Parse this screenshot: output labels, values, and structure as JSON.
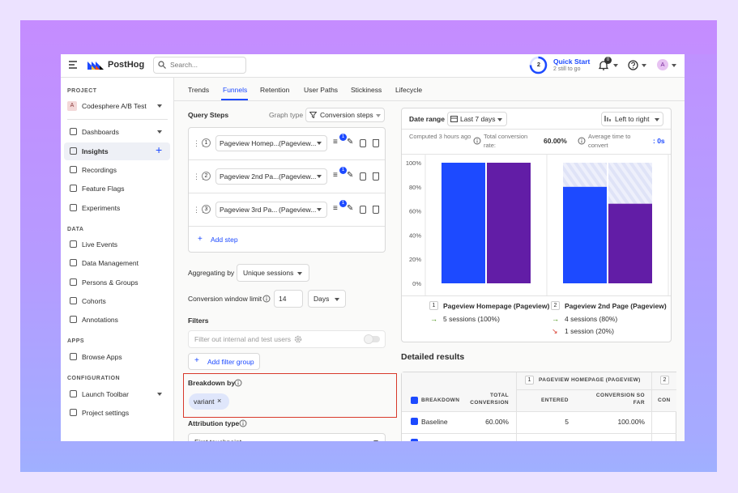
{
  "topbar": {
    "logo": "PostHog",
    "search_placeholder": "Search...",
    "quick_start": {
      "remaining": "2",
      "title": "Quick Start",
      "subtitle": "2 still to go"
    },
    "notification_count": "0",
    "avatar": "A"
  },
  "sidebar": {
    "project_heading": "PROJECT",
    "project_initial": "A",
    "project_name": "Codesphere A/B Test",
    "nav": [
      "Dashboards",
      "Insights",
      "Recordings",
      "Feature Flags",
      "Experiments"
    ],
    "data_heading": "DATA",
    "data_items": [
      "Live Events",
      "Data Management",
      "Persons & Groups",
      "Cohorts",
      "Annotations"
    ],
    "apps_heading": "APPS",
    "apps_items": [
      "Browse Apps"
    ],
    "configuration_heading": "CONFIGURATION",
    "configuration_items": [
      "Launch Toolbar",
      "Project settings"
    ]
  },
  "tabs": [
    "Trends",
    "Funnels",
    "Retention",
    "User Paths",
    "Stickiness",
    "Lifecycle"
  ],
  "query": {
    "heading": "Query Steps",
    "graph_type_label": "Graph type",
    "graph_type": "Conversion steps",
    "steps": [
      {
        "number": "1",
        "event": "Pageview Homep...",
        "math": "(Pageview...",
        "filter_count": "1"
      },
      {
        "number": "2",
        "event": "Pageview 2nd Pa...",
        "math": "(Pageview...",
        "filter_count": "1"
      },
      {
        "number": "3",
        "event": "Pageview 3rd Pa...",
        "math": "(Pageview...",
        "filter_count": "1"
      }
    ],
    "add_step": "Add step",
    "aggregating_label": "Aggregating by",
    "aggregating": "Unique sessions",
    "window_label": "Conversion window limit",
    "window_value": "14",
    "window_unit": "Days",
    "filters_heading": "Filters",
    "filter_internal": "Filter out internal and test users",
    "add_filter_group": "Add filter group",
    "breakdown_heading": "Breakdown by",
    "breakdown_value": "variant",
    "attribution_heading": "Attribution type",
    "attribution": "First touchpoint"
  },
  "insight": {
    "date_range_label": "Date range",
    "date_range": "Last 7 days",
    "layout": "Left to right",
    "computed": "Computed 3 hours ago",
    "total_conversion_label": "Total conversion rate:",
    "total_conversion": "60.00%",
    "avg_time_label": "Average time to convert",
    "avg_time": ": 0s"
  },
  "chart_data": {
    "type": "bar",
    "categories": [
      "Pageview Homepage (Pageview)",
      "Pageview 2nd Page (Pageview)"
    ],
    "step_numbers": [
      "1",
      "2"
    ],
    "series": [
      {
        "color": "#1d4aff",
        "values": [
          100,
          80
        ]
      },
      {
        "color": "#621da6",
        "values": [
          100,
          66
        ]
      }
    ],
    "ylim": [
      0,
      100
    ],
    "yticks": [
      {
        "value": 0,
        "label": "0%"
      },
      {
        "value": 20,
        "label": "20%"
      },
      {
        "value": 40,
        "label": "40%"
      },
      {
        "value": 60,
        "label": "60%"
      },
      {
        "value": 80,
        "label": "80%"
      },
      {
        "value": 100,
        "label": "100%"
      }
    ],
    "step_stats": [
      [
        "5 sessions (100%)"
      ],
      [
        "4 sessions (80%)",
        "1 session (20%)"
      ]
    ]
  },
  "results": {
    "heading": "Detailed results",
    "step_headers": [
      {
        "number": "1",
        "name": "PAGEVIEW HOMEPAGE (PAGEVIEW)"
      },
      {
        "number": "2"
      }
    ],
    "columns": [
      "BREAKDOWN",
      "TOTAL CONVERSION",
      "ENTERED",
      "CONVERSION SO FAR",
      "CON"
    ],
    "rows": [
      [
        "Baseline",
        "60.00%",
        "5",
        "100.00%"
      ]
    ]
  }
}
